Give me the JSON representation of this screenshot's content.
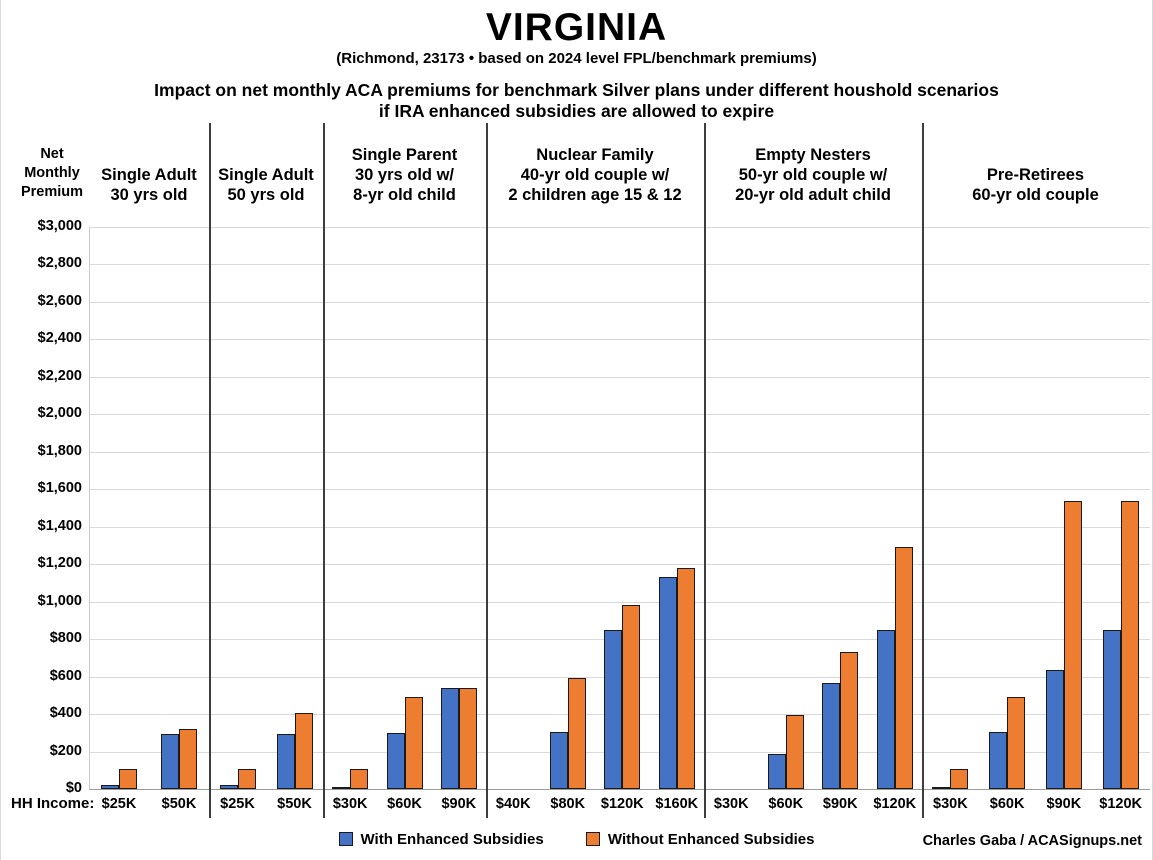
{
  "header": {
    "title": "VIRGINIA",
    "subtitle": "(Richmond, 23173 • based on 2024 level FPL/benchmark premiums)",
    "description_line1": "Impact on net monthly ACA premiums for benchmark Silver plans under different houshold scenarios",
    "description_line2": "if IRA enhanced subsidies are allowed to expire"
  },
  "footer": {
    "credit": "Charles Gaba / ACASignups.net"
  },
  "chart_data": {
    "type": "bar",
    "title": "VIRGINIA",
    "subtitle": "(Richmond, 23173 • based on 2024 level FPL/benchmark premiums)",
    "y_axis_title_lines": [
      "Net",
      "Monthly",
      "Premium"
    ],
    "x_axis_title": "HH Income:",
    "ylim": [
      0,
      3000
    ],
    "y_tick_step": 200,
    "y_ticks": [
      "$0",
      "$200",
      "$400",
      "$600",
      "$800",
      "$1,000",
      "$1,200",
      "$1,400",
      "$1,600",
      "$1,800",
      "$2,000",
      "$2,200",
      "$2,400",
      "$2,600",
      "$2,800",
      "$3,000"
    ],
    "grid": true,
    "legend_position": "bottom",
    "gridline_color": "#d9d9d9",
    "bar_border_color": "#1a1a1a",
    "series": [
      {
        "name": "With Enhanced Subsidies",
        "color": "#4472C4"
      },
      {
        "name": "Without Enhanced Subsidies",
        "color": "#ED7D31"
      }
    ],
    "groups": [
      {
        "label_lines": [
          "Single Adult",
          "30 yrs old"
        ],
        "categories": [
          "$25K",
          "$50K"
        ],
        "with_enhanced": [
          20,
          295
        ],
        "without_enhanced": [
          105,
          320
        ]
      },
      {
        "label_lines": [
          "Single Adult",
          "50 yrs old"
        ],
        "categories": [
          "$25K",
          "$50K"
        ],
        "with_enhanced": [
          20,
          295
        ],
        "without_enhanced": [
          105,
          405
        ]
      },
      {
        "label_lines": [
          "Single Parent",
          "30 yrs old w/",
          "8-yr old child"
        ],
        "categories": [
          "$30K",
          "$60K",
          "$90K"
        ],
        "with_enhanced": [
          5,
          300,
          540
        ],
        "without_enhanced": [
          105,
          490,
          540
        ]
      },
      {
        "label_lines": [
          "Nuclear Family",
          "40-yr old couple w/",
          "2 children age 15 & 12"
        ],
        "categories": [
          "$40K",
          "$80K",
          "$120K",
          "$160K"
        ],
        "with_enhanced": [
          0,
          305,
          850,
          1130
        ],
        "without_enhanced": [
          0,
          590,
          980,
          1180
        ]
      },
      {
        "label_lines": [
          "Empty Nesters",
          "50-yr old couple w/",
          "20-yr old adult child"
        ],
        "categories": [
          "$30K",
          "$60K",
          "$90K",
          "$120K"
        ],
        "with_enhanced": [
          0,
          185,
          565,
          850
        ],
        "without_enhanced": [
          0,
          395,
          730,
          1290
        ]
      },
      {
        "label_lines": [
          "Pre-Retirees",
          "60-yr old couple"
        ],
        "categories": [
          "$30K",
          "$60K",
          "$90K",
          "$120K"
        ],
        "with_enhanced": [
          10,
          305,
          635,
          850
        ],
        "without_enhanced": [
          105,
          490,
          1540,
          1540
        ]
      }
    ]
  }
}
